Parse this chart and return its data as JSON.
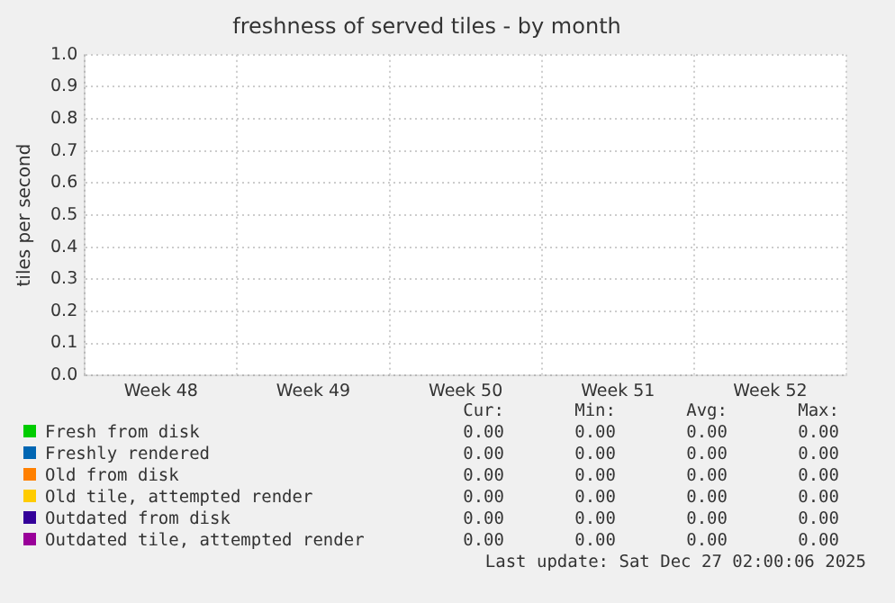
{
  "chart_data": {
    "type": "line",
    "title": "freshness of served tiles - by month",
    "ylabel": "tiles per second",
    "categories": [
      "Week 48",
      "Week 49",
      "Week 50",
      "Week 51",
      "Week 52"
    ],
    "ylim": [
      0,
      1
    ],
    "yticks": [
      {
        "value": 0,
        "label": "0.0"
      },
      {
        "value": 0.1,
        "label": "0.1"
      },
      {
        "value": 0.2,
        "label": "0.2"
      },
      {
        "value": 0.3,
        "label": "0.3"
      },
      {
        "value": 0.4,
        "label": "0.4"
      },
      {
        "value": 0.5,
        "label": "0.5"
      },
      {
        "value": 0.6,
        "label": "0.6"
      },
      {
        "value": 0.7,
        "label": "0.7"
      },
      {
        "value": 0.8,
        "label": "0.8"
      },
      {
        "value": 0.9,
        "label": "0.9"
      },
      {
        "value": 1,
        "label": "1.0"
      }
    ],
    "grid": true,
    "legend": "bottom",
    "series": [
      {
        "name": "Fresh from disk",
        "color": "#00cc00",
        "values": [
          null,
          null,
          null,
          null,
          null
        ]
      },
      {
        "name": "Freshly rendered",
        "color": "#0066b3",
        "values": [
          null,
          null,
          null,
          null,
          null
        ]
      },
      {
        "name": "Old from disk",
        "color": "#ff8000",
        "values": [
          null,
          null,
          null,
          null,
          null
        ]
      },
      {
        "name": "Old tile, attempted render",
        "color": "#ffcc00",
        "values": [
          null,
          null,
          null,
          null,
          null
        ]
      },
      {
        "name": "Outdated from disk",
        "color": "#330099",
        "values": [
          null,
          null,
          null,
          null,
          null
        ]
      },
      {
        "name": "Outdated tile, attempted render",
        "color": "#990099",
        "values": [
          null,
          null,
          null,
          null,
          null
        ]
      }
    ],
    "annotations": [
      "Cur:",
      "Min:",
      "Avg:",
      "Max:",
      "0.00",
      "0.00",
      "0.00",
      "0.00",
      "0.00",
      "0.00",
      "0.00",
      "0.00",
      "0.00",
      "0.00",
      "0.00",
      "0.00",
      "0.00",
      "0.00",
      "0.00",
      "0.00",
      "0.00",
      "0.00",
      "0.00",
      "0.00",
      "0.00",
      "0.00",
      "0.00",
      "0.00",
      "Last update: Sat Dec 27 02:00:06 2025"
    ]
  }
}
